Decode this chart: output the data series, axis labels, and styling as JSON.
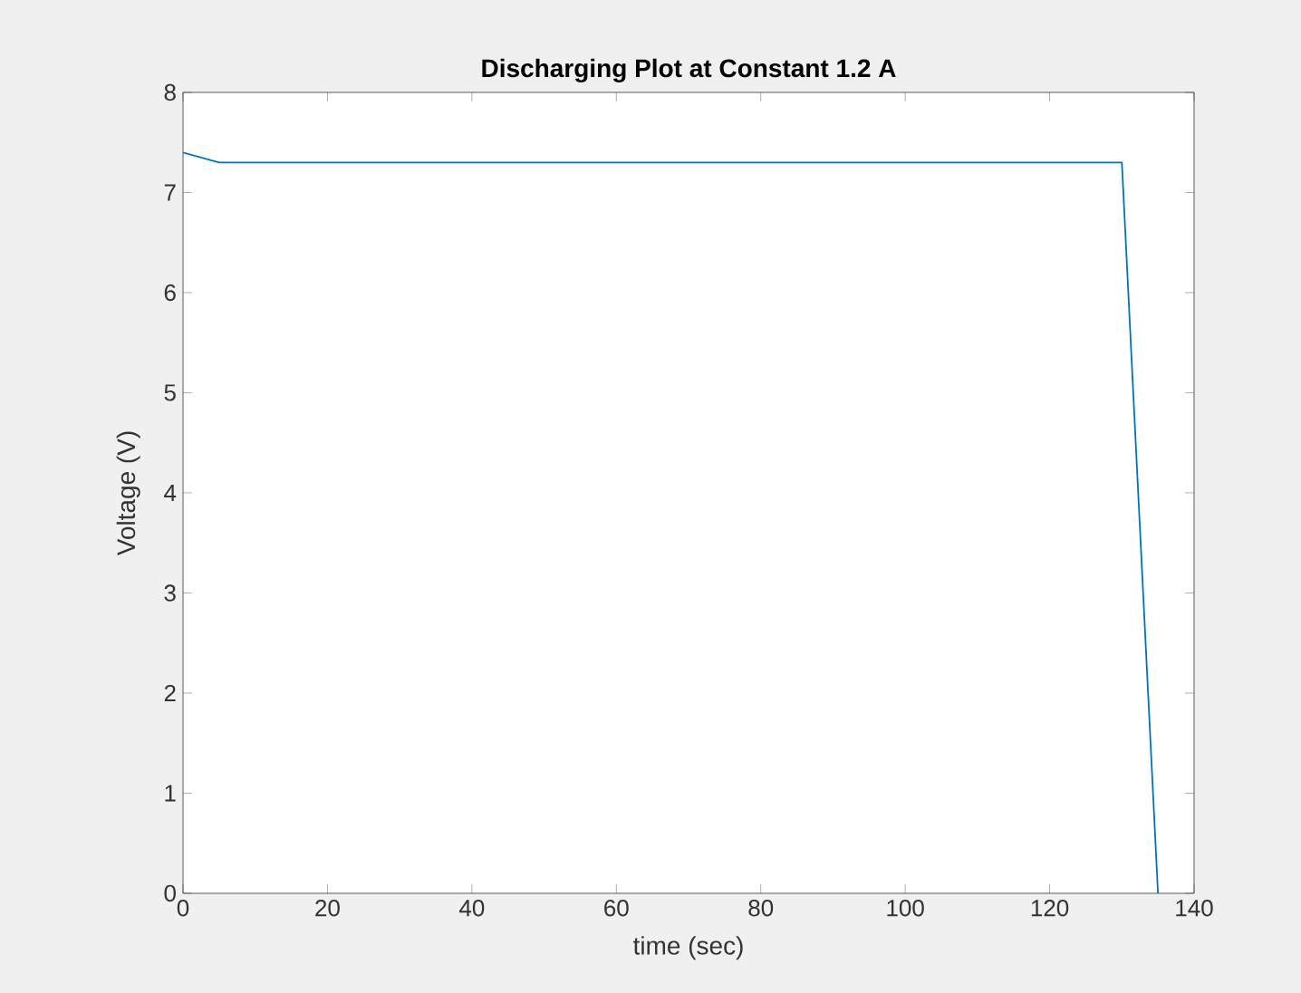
{
  "chart_data": {
    "type": "line",
    "title": "Discharging Plot at Constant 1.2 A",
    "xlabel": "time (sec)",
    "ylabel": "Voltage (V)",
    "x": [
      0,
      5,
      130,
      135
    ],
    "series": [
      {
        "color": "#0072bd",
        "values": [
          7.4,
          7.3,
          7.3,
          0
        ]
      }
    ],
    "xlim": [
      0,
      140
    ],
    "ylim": [
      0,
      8
    ],
    "xticks": [
      0,
      20,
      40,
      60,
      80,
      100,
      120,
      140
    ],
    "yticks": [
      0,
      1,
      2,
      3,
      4,
      5,
      6,
      7,
      8
    ],
    "grid": false,
    "marker": "none",
    "line_style": "solid"
  }
}
